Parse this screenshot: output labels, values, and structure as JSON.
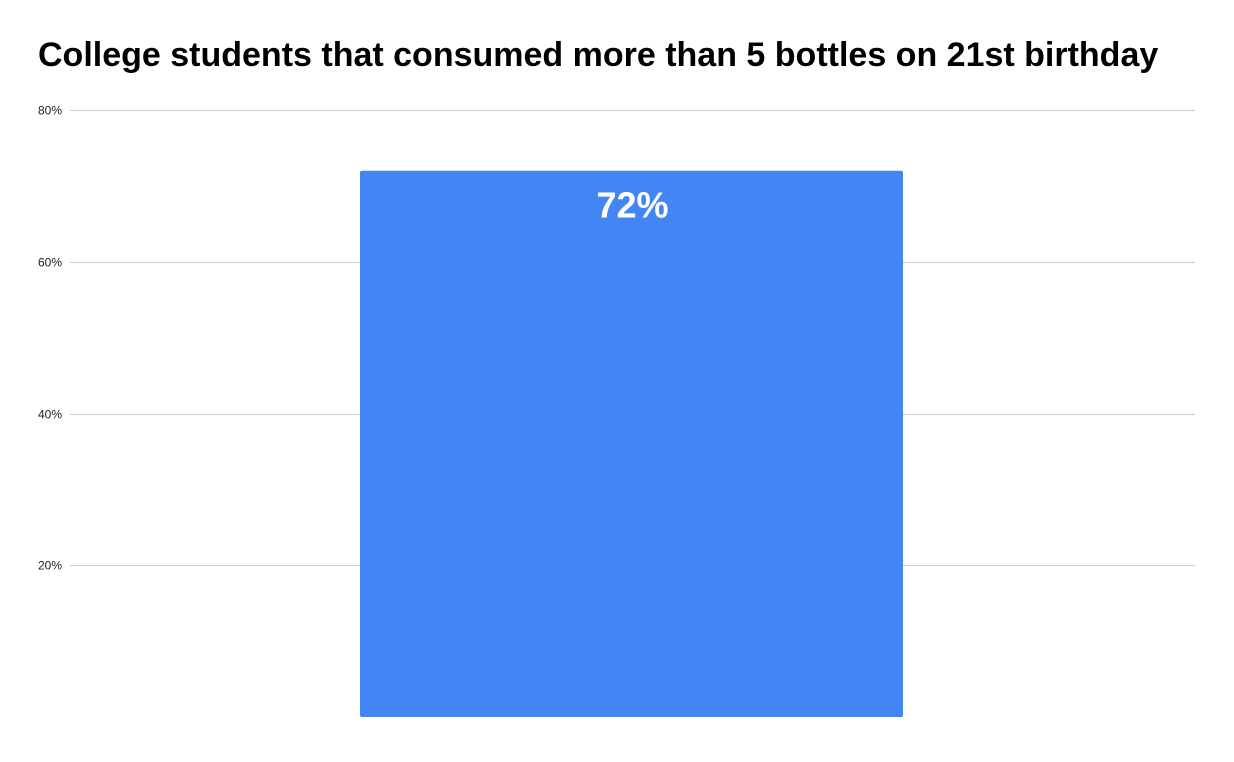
{
  "chart_data": {
    "type": "bar",
    "title": "College students that consumed more than 5 bottles on 21st birthday",
    "categories": [
      ""
    ],
    "values": [
      72
    ],
    "data_labels": [
      "72%"
    ],
    "xlabel": "",
    "ylabel": "",
    "ylim": [
      0,
      80
    ],
    "yticks": [
      20,
      40,
      60,
      80
    ],
    "ytick_labels": [
      "20%",
      "40%",
      "60%",
      "80%"
    ],
    "grid": true,
    "legend": "none",
    "colors": {
      "bar": "#4285f4",
      "grid": "#cccccc",
      "data_label": "#ffffff"
    }
  }
}
